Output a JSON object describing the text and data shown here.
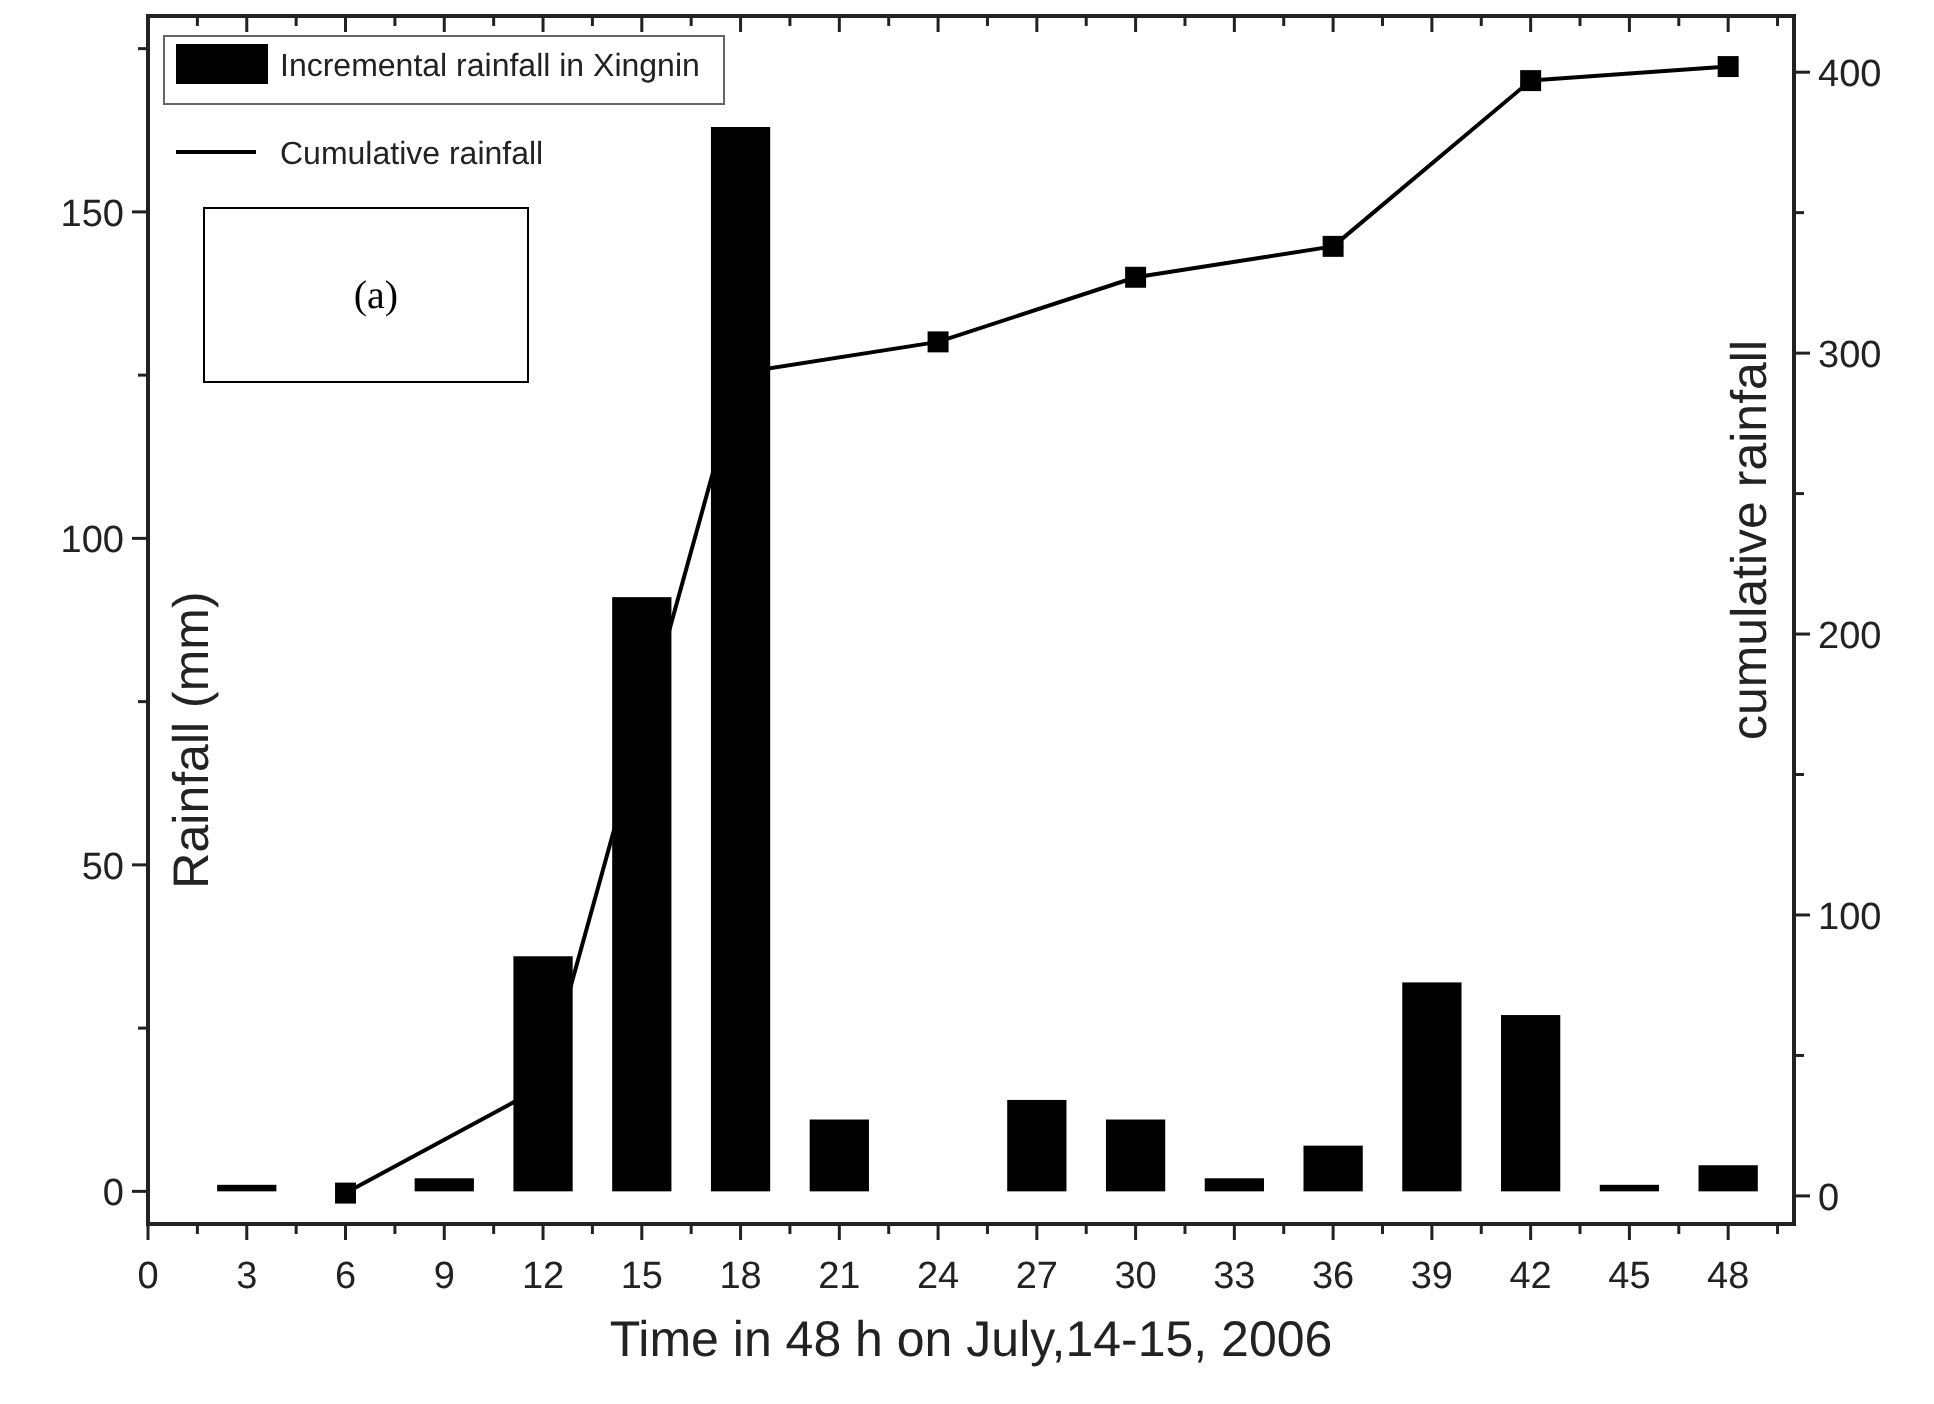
{
  "chart_data": {
    "type": "bar",
    "xlabel": "Time in 48 h on July,14-15, 2006",
    "ylabel": "Rainfall (mm)",
    "y2label": "cumulative rainfall",
    "x": [
      3,
      6,
      9,
      12,
      15,
      18,
      21,
      24,
      27,
      30,
      33,
      36,
      39,
      42,
      45,
      48
    ],
    "series": [
      {
        "name": "Incremental rainfall in Xingnin",
        "color": "#000000",
        "values": [
          1,
          0,
          2,
          36,
          91,
          163,
          11,
          0,
          14,
          11,
          2,
          7,
          32,
          27,
          1,
          4
        ]
      },
      {
        "name": "Cumulative rainfall",
        "type": "line",
        "axis": "y2",
        "color": "#000000",
        "x": [
          6,
          12,
          18,
          24,
          30,
          36,
          42,
          48
        ],
        "values": [
          1,
          39,
          293,
          304,
          327,
          338,
          397,
          402
        ]
      }
    ],
    "xlim": [
      0,
      50
    ],
    "xticks": [
      0,
      {
        "value": 1.5,
        "label": null
      },
      3,
      {
        "value": 4.5,
        "label": null
      },
      6,
      {
        "value": 7.5,
        "label": null
      },
      9,
      {
        "value": 10.5,
        "label": null
      },
      12,
      {
        "value": 13.5,
        "label": null
      },
      15,
      {
        "value": 16.5,
        "label": null
      },
      18,
      {
        "value": 19.5,
        "label": null
      },
      21,
      {
        "value": 22.5,
        "label": null
      },
      24,
      {
        "value": 25.5,
        "label": null
      },
      27,
      {
        "value": 28.5,
        "label": null
      },
      30,
      {
        "value": 31.5,
        "label": null
      },
      33,
      {
        "value": 34.5,
        "label": null
      },
      36,
      {
        "value": 37.5,
        "label": null
      },
      39,
      {
        "value": 40.5,
        "label": null
      },
      42,
      {
        "value": 43.5,
        "label": null
      },
      45,
      {
        "value": 46.5,
        "label": null
      },
      48,
      {
        "value": 49.5,
        "label": null
      }
    ],
    "ylim": [
      -5,
      180
    ],
    "yticks": [
      0,
      {
        "value": 25,
        "label": null
      },
      50,
      {
        "value": 75,
        "label": null
      },
      100,
      {
        "value": 125,
        "label": null
      },
      150,
      {
        "value": 175,
        "label": null
      }
    ],
    "y2lim": [
      -10,
      420
    ],
    "y2ticks": [
      0,
      {
        "value": 50,
        "label": null
      },
      100,
      {
        "value": 150,
        "label": null
      },
      200,
      {
        "value": 250,
        "label": null
      },
      300,
      {
        "value": 350,
        "label": null
      },
      400
    ],
    "marker": "square",
    "legend": "top left",
    "grid": false,
    "annotations": [
      "(a)"
    ]
  }
}
